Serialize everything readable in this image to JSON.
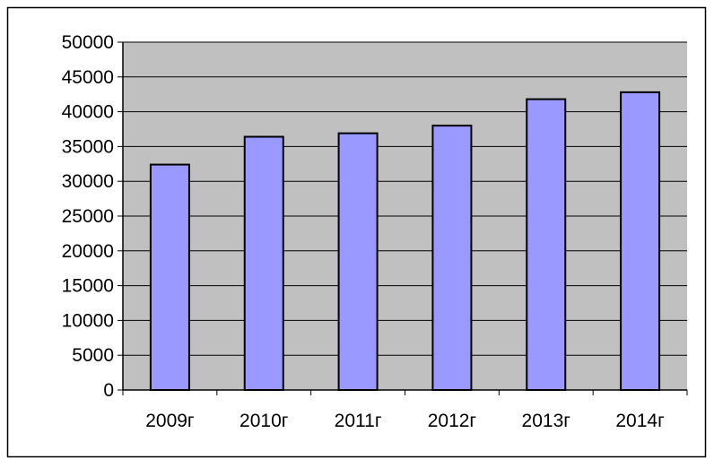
{
  "chart_data": {
    "type": "bar",
    "title": "",
    "xlabel": "",
    "ylabel": "",
    "categories": [
      "2009г",
      "2010г",
      "2011г",
      "2012г",
      "2013г",
      "2014г"
    ],
    "values": [
      32400,
      36400,
      36900,
      38000,
      41800,
      42800
    ],
    "ylim": [
      0,
      50000
    ],
    "yticks": [
      "0",
      "5000",
      "10000",
      "15000",
      "20000",
      "25000",
      "30000",
      "35000",
      "40000",
      "45000",
      "50000"
    ],
    "grid": true,
    "legend": "none",
    "colors": {
      "bar": "#9999FF",
      "plot_background": "#C0C0C0",
      "chart_background": "#FFFFFF"
    }
  }
}
